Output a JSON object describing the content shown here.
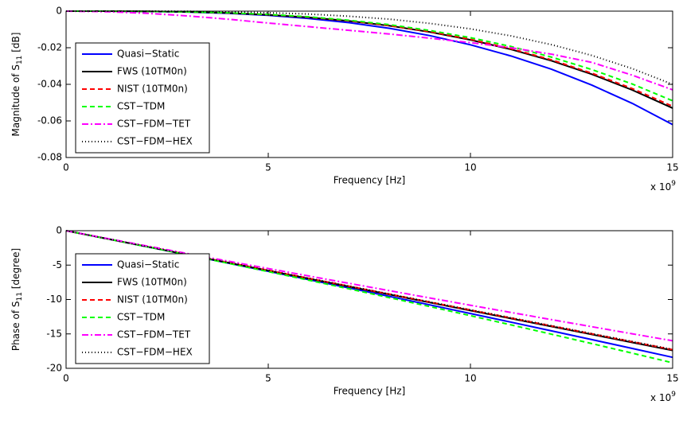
{
  "chart_data": [
    {
      "type": "line",
      "ylabel": {
        "text": "Magnitude of S",
        "sub": "11",
        "suffix": " [dB]"
      },
      "xlabel": "Frequency [Hz]",
      "x_multiplier": {
        "text": "x 10",
        "sup": "9"
      },
      "x": [
        0,
        1,
        2,
        3,
        4,
        5,
        6,
        7,
        8,
        9,
        10,
        11,
        12,
        13,
        14,
        15
      ],
      "xlim": [
        0,
        15
      ],
      "xticks": [
        0,
        5,
        10,
        15
      ],
      "ylim": [
        -0.08,
        0
      ],
      "yticks": [
        -0.08,
        -0.06,
        -0.04,
        -0.02,
        0
      ],
      "grid": false,
      "legend": "lower left",
      "series": [
        {
          "name": "Quasi−Static",
          "color": "#0000ff",
          "dash": "solid",
          "values": [
            0,
            -2e-05,
            -0.00015,
            -0.0005,
            -0.0012,
            -0.0023,
            -0.004,
            -0.0063,
            -0.0094,
            -0.0134,
            -0.0184,
            -0.0245,
            -0.0317,
            -0.0404,
            -0.0504,
            -0.062
          ]
        },
        {
          "name": "FWS (10TM0n)",
          "color": "#000000",
          "dash": "solid",
          "values": [
            0,
            -2e-05,
            -0.00013,
            -0.0004,
            -0.001,
            -0.002,
            -0.0034,
            -0.0054,
            -0.008,
            -0.0114,
            -0.0157,
            -0.0209,
            -0.0271,
            -0.0345,
            -0.0431,
            -0.053
          ]
        },
        {
          "name": "NIST (10TM0n)",
          "color": "#ff0000",
          "dash": "dashed",
          "values": [
            0,
            -2e-05,
            -0.00012,
            -0.0004,
            -0.001,
            -0.0019,
            -0.0033,
            -0.0053,
            -0.0079,
            -0.0112,
            -0.0154,
            -0.0205,
            -0.0266,
            -0.0339,
            -0.0423,
            -0.052
          ]
        },
        {
          "name": "CST−TDM",
          "color": "#00ff00",
          "dash": "dashed",
          "values": [
            0,
            -1e-05,
            -0.00012,
            -0.0004,
            -0.0009,
            -0.0018,
            -0.0031,
            -0.005,
            -0.0074,
            -0.0106,
            -0.0145,
            -0.0193,
            -0.0251,
            -0.0319,
            -0.0398,
            -0.049
          ]
        },
        {
          "name": "CST−FDM−TET",
          "color": "#ff00ff",
          "dash": "dashdot",
          "values": [
            0,
            -0.0003,
            -0.0012,
            -0.0026,
            -0.0044,
            -0.0065,
            -0.0085,
            -0.0105,
            -0.0125,
            -0.0148,
            -0.0172,
            -0.02,
            -0.0235,
            -0.028,
            -0.035,
            -0.043
          ]
        },
        {
          "name": "CST−FDM−HEX",
          "color": "#000000",
          "dash": "dotted",
          "values": [
            0,
            0,
            -4e-05,
            -0.0001,
            -0.0004,
            -0.0009,
            -0.0016,
            -0.0028,
            -0.0044,
            -0.0067,
            -0.0097,
            -0.0135,
            -0.0183,
            -0.0242,
            -0.0314,
            -0.04
          ]
        }
      ]
    },
    {
      "type": "line",
      "ylabel": {
        "text": "Phase of S",
        "sub": "11",
        "suffix": " [degree]"
      },
      "xlabel": "Frequency [Hz]",
      "x_multiplier": {
        "text": "x 10",
        "sup": "9"
      },
      "x": [
        0,
        1,
        2,
        3,
        4,
        5,
        6,
        7,
        8,
        9,
        10,
        11,
        12,
        13,
        14,
        15
      ],
      "xlim": [
        0,
        15
      ],
      "xticks": [
        0,
        5,
        10,
        15
      ],
      "ylim": [
        -20,
        0
      ],
      "yticks": [
        -20,
        -15,
        -10,
        -5,
        0
      ],
      "grid": false,
      "legend": "lower left",
      "series": [
        {
          "name": "Quasi−Static",
          "color": "#0000ff",
          "dash": "solid",
          "values": [
            0,
            -1.161,
            -2.332,
            -3.512,
            -4.701,
            -5.9,
            -7.108,
            -8.326,
            -9.553,
            -10.789,
            -12.034,
            -13.288,
            -14.552,
            -15.826,
            -17.109,
            -18.401
          ]
        },
        {
          "name": "FWS (10TM0n)",
          "color": "#000000",
          "dash": "solid",
          "values": [
            0,
            -1.16,
            -2.32,
            -3.48,
            -4.64,
            -5.8,
            -6.96,
            -8.12,
            -9.28,
            -10.44,
            -11.6,
            -12.76,
            -13.92,
            -15.08,
            -16.24,
            -17.4
          ]
        },
        {
          "name": "NIST (10TM0n)",
          "color": "#ff0000",
          "dash": "dashed",
          "values": [
            0,
            -1.153,
            -2.306,
            -3.459,
            -4.612,
            -5.765,
            -6.918,
            -8.071,
            -9.224,
            -10.377,
            -11.53,
            -12.683,
            -13.836,
            -14.989,
            -16.142,
            -17.295
          ]
        },
        {
          "name": "CST−TDM",
          "color": "#00ff00",
          "dash": "dashed",
          "values": [
            0,
            -1.154,
            -2.326,
            -3.516,
            -4.724,
            -5.95,
            -7.194,
            -8.456,
            -9.736,
            -11.034,
            -12.35,
            -13.684,
            -15.036,
            -16.406,
            -17.794,
            -19.2
          ]
        },
        {
          "name": "CST−FDM−TET",
          "color": "#ff00ff",
          "dash": "dashdot",
          "values": [
            0,
            -1.113,
            -2.22,
            -3.32,
            -4.413,
            -5.5,
            -6.58,
            -7.653,
            -8.72,
            -9.78,
            -10.833,
            -11.88,
            -12.92,
            -13.953,
            -14.98,
            -16
          ]
        },
        {
          "name": "CST−FDM−HEX",
          "color": "#000000",
          "dash": "dotted",
          "values": [
            0,
            -1.15,
            -2.3,
            -3.45,
            -4.6,
            -5.75,
            -6.9,
            -8.05,
            -9.2,
            -10.35,
            -11.5,
            -12.65,
            -13.8,
            -14.95,
            -16.1,
            -17.25
          ]
        }
      ]
    }
  ]
}
